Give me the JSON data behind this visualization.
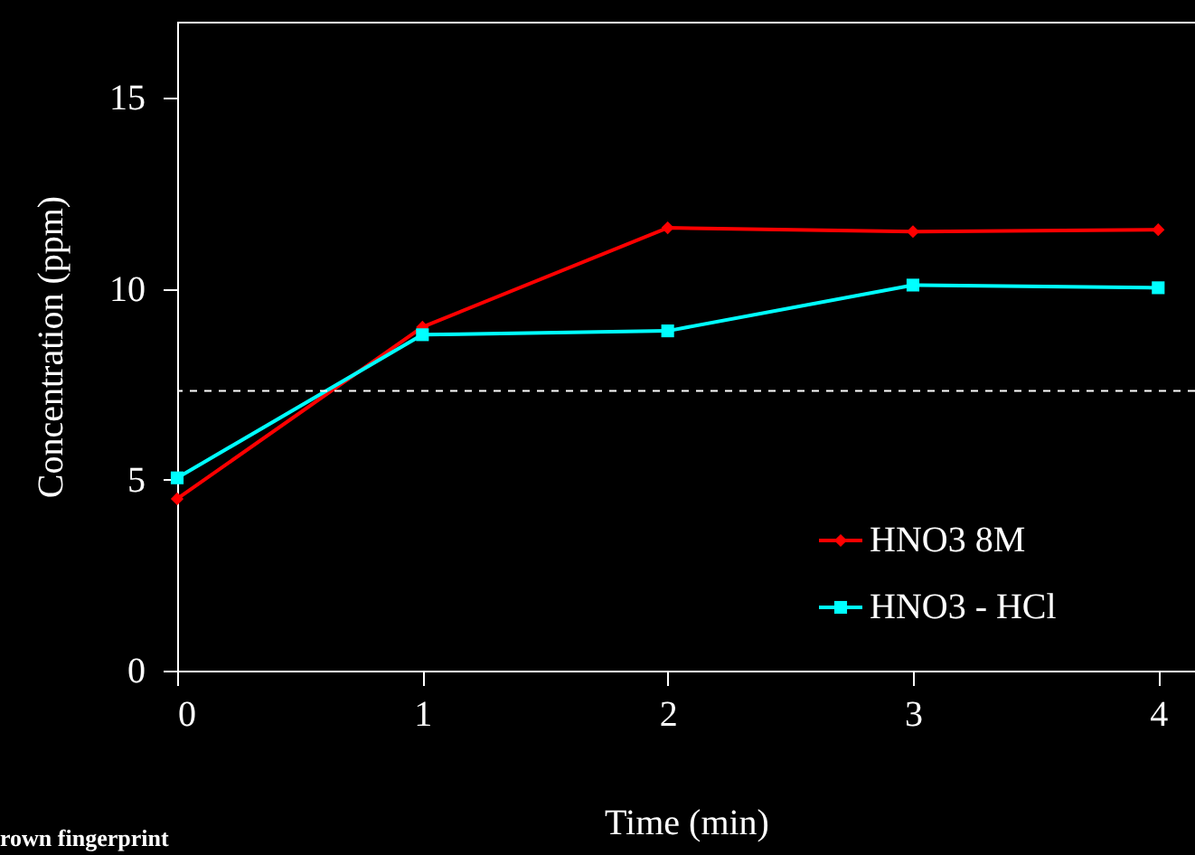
{
  "chart_data": {
    "type": "line",
    "xlabel": "Time (min)",
    "ylabel": "Concentration (ppm)",
    "x": [
      0,
      1,
      2,
      3,
      4
    ],
    "series": [
      {
        "name": "HNO3 8M",
        "color": "#ff0000",
        "marker": "diamond",
        "values": [
          4.5,
          9.0,
          11.6,
          11.5,
          11.55
        ]
      },
      {
        "name": "HNO3 - HCl",
        "color": "#00ffff",
        "marker": "square",
        "values": [
          5.05,
          8.8,
          8.9,
          10.1,
          10.03
        ]
      }
    ],
    "xlim": [
      0,
      4.15
    ],
    "xticks": [
      0,
      1,
      2,
      3,
      4
    ],
    "ylim": [
      0,
      17
    ],
    "yticks": [
      0,
      5,
      10,
      15
    ],
    "ref_lines": [
      {
        "axis": "y",
        "value": 7.33,
        "color": "#ffffff",
        "line_style": "dashed"
      }
    ],
    "annotations": [
      "rown fingerprint"
    ],
    "legend": "bottom right",
    "grid": false,
    "line_style": "solid"
  }
}
